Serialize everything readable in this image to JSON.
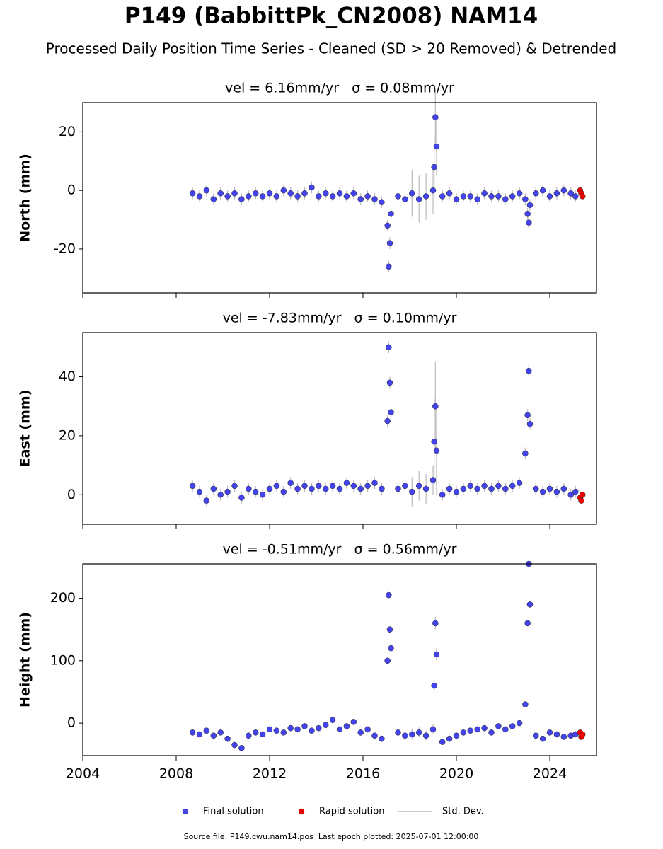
{
  "title": "P149 (BabbittPk_CN2008) NAM14",
  "subtitle": "Processed Daily Position Time Series - Cleaned (SD > 20 Removed) & Detrended",
  "legend": [
    {
      "name": "Final solution",
      "color": "#4444ee"
    },
    {
      "name": "Rapid solution",
      "color": "#ee0000"
    },
    {
      "name": "Std. Dev.",
      "color": "#bbbbbb"
    }
  ],
  "footer": "Source file: P149.cwu.nam14.pos  Last epoch plotted: 2025-07-01 12:00:00",
  "chart_data": [
    {
      "type": "scatter",
      "title": "vel = 6.16mm/yr   σ = 0.08mm/yr",
      "ylabel": "North (mm)",
      "xlim": [
        2004,
        2026
      ],
      "xticks": [
        2004,
        2008,
        2012,
        2016,
        2020,
        2024
      ],
      "ylim": [
        -35,
        30
      ],
      "yticks": [
        -20,
        0,
        20
      ],
      "series": [
        {
          "color": "#4444ee",
          "x": [
            2008.7,
            2009.0,
            2009.3,
            2009.6,
            2009.9,
            2010.2,
            2010.5,
            2010.8,
            2011.1,
            2011.4,
            2011.7,
            2012.0,
            2012.3,
            2012.6,
            2012.9,
            2013.2,
            2013.5,
            2013.8,
            2014.1,
            2014.4,
            2014.7,
            2015.0,
            2015.3,
            2015.6,
            2015.9,
            2016.2,
            2016.5,
            2016.8,
            2017.05,
            2017.1,
            2017.15,
            2017.2,
            2017.5,
            2017.8,
            2018.1,
            2018.4,
            2018.7,
            2019.0,
            2019.05,
            2019.1,
            2019.15,
            2019.4,
            2019.7,
            2020.0,
            2020.3,
            2020.6,
            2020.9,
            2021.2,
            2021.5,
            2021.8,
            2022.1,
            2022.4,
            2022.7,
            2022.95,
            2023.05,
            2023.1,
            2023.15,
            2023.4,
            2023.7,
            2024.0,
            2024.3,
            2024.6,
            2024.9,
            2025.1
          ],
          "values": [
            -1,
            -2,
            0,
            -3,
            -1,
            -2,
            -1,
            -3,
            -2,
            -1,
            -2,
            -1,
            -2,
            0,
            -1,
            -2,
            -1,
            1,
            -2,
            -1,
            -2,
            -1,
            -2,
            -1,
            -3,
            -2,
            -3,
            -4,
            -12,
            -26,
            -18,
            -8,
            -2,
            -3,
            -1,
            -3,
            -2,
            0,
            8,
            25,
            15,
            -2,
            -1,
            -3,
            -2,
            -2,
            -3,
            -1,
            -2,
            -2,
            -3,
            -2,
            -1,
            -3,
            -8,
            -11,
            -5,
            -1,
            0,
            -2,
            -1,
            0,
            -1,
            -2
          ],
          "errors": [
            2,
            2,
            2,
            2,
            2,
            2,
            2,
            2,
            2,
            2,
            2,
            2,
            2,
            2,
            2,
            2,
            2,
            2,
            2,
            2,
            2,
            2,
            2,
            2,
            2,
            2,
            2,
            2,
            2,
            2,
            2,
            2,
            2,
            2,
            8,
            8,
            8,
            8,
            10,
            10,
            10,
            2,
            2,
            2,
            2,
            2,
            2,
            2,
            2,
            2,
            2,
            2,
            2,
            2,
            2,
            2,
            2,
            2,
            2,
            2,
            2,
            2,
            2,
            2
          ]
        },
        {
          "color": "#ee0000",
          "x": [
            2025.3,
            2025.35,
            2025.4
          ],
          "values": [
            0,
            -1,
            -2
          ]
        }
      ]
    },
    {
      "type": "scatter",
      "title": "vel = -7.83mm/yr   σ = 0.10mm/yr",
      "ylabel": "East (mm)",
      "xlim": [
        2004,
        2026
      ],
      "xticks": [
        2004,
        2008,
        2012,
        2016,
        2020,
        2024
      ],
      "ylim": [
        -10,
        55
      ],
      "yticks": [
        0,
        20,
        40
      ],
      "series": [
        {
          "color": "#4444ee",
          "x": [
            2008.7,
            2009.0,
            2009.3,
            2009.6,
            2009.9,
            2010.2,
            2010.5,
            2010.8,
            2011.1,
            2011.4,
            2011.7,
            2012.0,
            2012.3,
            2012.6,
            2012.9,
            2013.2,
            2013.5,
            2013.8,
            2014.1,
            2014.4,
            2014.7,
            2015.0,
            2015.3,
            2015.6,
            2015.9,
            2016.2,
            2016.5,
            2016.8,
            2017.05,
            2017.1,
            2017.15,
            2017.2,
            2017.5,
            2017.8,
            2018.1,
            2018.4,
            2018.7,
            2019.0,
            2019.05,
            2019.1,
            2019.15,
            2019.4,
            2019.7,
            2020.0,
            2020.3,
            2020.6,
            2020.9,
            2021.2,
            2021.5,
            2021.8,
            2022.1,
            2022.4,
            2022.7,
            2022.95,
            2023.05,
            2023.1,
            2023.15,
            2023.4,
            2023.7,
            2024.0,
            2024.3,
            2024.6,
            2024.9,
            2025.1
          ],
          "values": [
            3,
            1,
            -2,
            2,
            0,
            1,
            3,
            -1,
            2,
            1,
            0,
            2,
            3,
            1,
            4,
            2,
            3,
            2,
            3,
            2,
            3,
            2,
            4,
            3,
            2,
            3,
            4,
            2,
            25,
            50,
            38,
            28,
            2,
            3,
            1,
            3,
            2,
            5,
            18,
            30,
            15,
            0,
            2,
            1,
            2,
            3,
            2,
            3,
            2,
            3,
            2,
            3,
            4,
            14,
            27,
            42,
            24,
            2,
            1,
            2,
            1,
            2,
            0,
            1
          ],
          "errors": [
            2,
            2,
            2,
            2,
            2,
            2,
            2,
            2,
            2,
            2,
            2,
            2,
            2,
            2,
            2,
            2,
            2,
            2,
            2,
            2,
            2,
            2,
            2,
            2,
            2,
            2,
            2,
            2,
            2,
            2,
            2,
            2,
            2,
            2,
            5,
            5,
            5,
            5,
            15,
            15,
            15,
            2,
            2,
            2,
            2,
            2,
            2,
            2,
            2,
            2,
            2,
            2,
            2,
            2,
            2,
            2,
            2,
            2,
            2,
            2,
            2,
            2,
            2,
            2
          ]
        },
        {
          "color": "#ee0000",
          "x": [
            2025.3,
            2025.35,
            2025.4
          ],
          "values": [
            -1,
            -2,
            0
          ]
        }
      ]
    },
    {
      "type": "scatter",
      "title": "vel = -0.51mm/yr   σ = 0.56mm/yr",
      "ylabel": "Height (mm)",
      "xlim": [
        2004,
        2026
      ],
      "xticks": [
        2004,
        2008,
        2012,
        2016,
        2020,
        2024
      ],
      "ylim": [
        -52,
        255
      ],
      "yticks": [
        0,
        100,
        200
      ],
      "series": [
        {
          "color": "#4444ee",
          "x": [
            2008.7,
            2009.0,
            2009.3,
            2009.6,
            2009.9,
            2010.2,
            2010.5,
            2010.8,
            2011.1,
            2011.4,
            2011.7,
            2012.0,
            2012.3,
            2012.6,
            2012.9,
            2013.2,
            2013.5,
            2013.8,
            2014.1,
            2014.4,
            2014.7,
            2015.0,
            2015.3,
            2015.6,
            2015.9,
            2016.2,
            2016.5,
            2016.8,
            2017.05,
            2017.1,
            2017.15,
            2017.2,
            2017.5,
            2017.8,
            2018.1,
            2018.4,
            2018.7,
            2019.0,
            2019.05,
            2019.1,
            2019.15,
            2019.4,
            2019.7,
            2020.0,
            2020.3,
            2020.6,
            2020.9,
            2021.2,
            2021.5,
            2021.8,
            2022.1,
            2022.4,
            2022.7,
            2022.95,
            2023.05,
            2023.1,
            2023.15,
            2023.4,
            2023.7,
            2024.0,
            2024.3,
            2024.6,
            2024.9,
            2025.1
          ],
          "values": [
            -15,
            -18,
            -12,
            -20,
            -15,
            -25,
            -35,
            -40,
            -20,
            -15,
            -18,
            -10,
            -12,
            -15,
            -8,
            -10,
            -5,
            -12,
            -8,
            -3,
            5,
            -10,
            -5,
            2,
            -15,
            -10,
            -20,
            -25,
            100,
            205,
            150,
            120,
            -15,
            -20,
            -18,
            -15,
            -20,
            -10,
            60,
            160,
            110,
            -30,
            -25,
            -20,
            -15,
            -12,
            -10,
            -8,
            -15,
            -5,
            -10,
            -5,
            0,
            30,
            160,
            255,
            190,
            -20,
            -25,
            -15,
            -18,
            -22,
            -20,
            -18
          ],
          "errors": [
            5,
            5,
            5,
            5,
            5,
            5,
            5,
            5,
            5,
            5,
            5,
            5,
            5,
            5,
            5,
            5,
            5,
            5,
            5,
            5,
            5,
            5,
            5,
            5,
            5,
            5,
            5,
            5,
            5,
            5,
            5,
            5,
            5,
            5,
            8,
            8,
            8,
            8,
            10,
            10,
            10,
            5,
            5,
            5,
            5,
            5,
            5,
            5,
            5,
            5,
            5,
            5,
            5,
            5,
            5,
            5,
            5,
            5,
            5,
            5,
            5,
            5,
            5,
            5
          ]
        },
        {
          "color": "#ee0000",
          "x": [
            2025.3,
            2025.35,
            2025.4
          ],
          "values": [
            -15,
            -22,
            -18
          ]
        }
      ]
    }
  ]
}
